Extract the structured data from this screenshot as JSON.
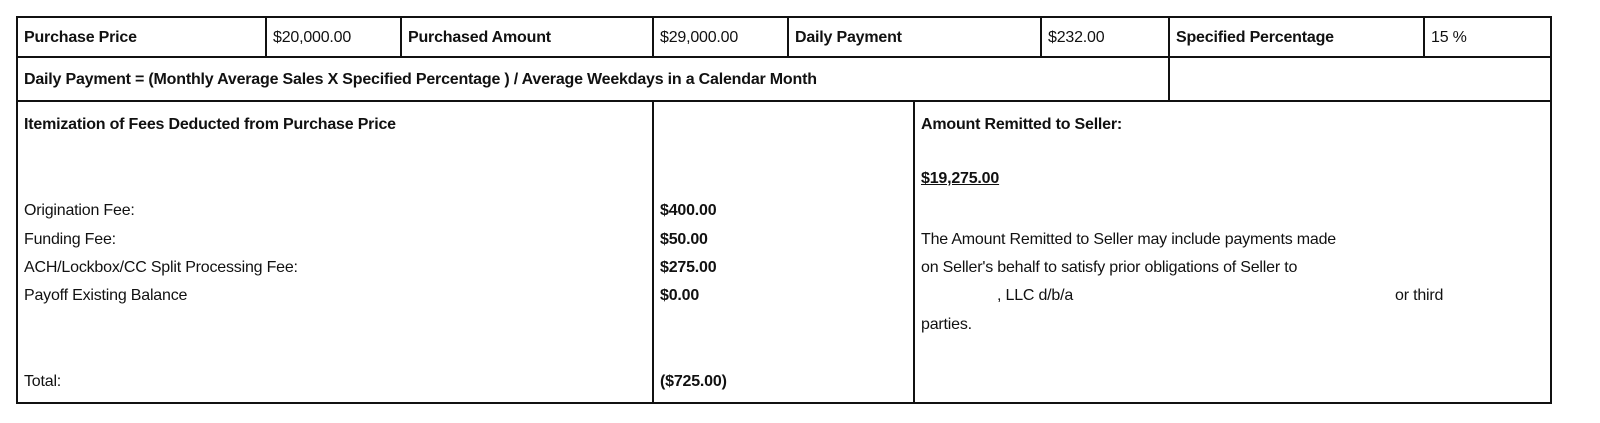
{
  "header_row": [
    {
      "label": "Purchase Price",
      "value": "$20,000.00"
    },
    {
      "label": "Purchased Amount",
      "value": "$29,000.00"
    },
    {
      "label": "Daily Payment",
      "value": "$232.00"
    },
    {
      "label": "Specified Percentage",
      "value": "15 %"
    }
  ],
  "formula": "Daily Payment = (Monthly Average Sales X Specified Percentage ) / Average Weekdays in a Calendar Month",
  "fees": {
    "title": "Itemization of Fees Deducted from Purchase Price",
    "items": [
      {
        "label": "Origination Fee:",
        "amount": "$400.00"
      },
      {
        "label": "Funding Fee:",
        "amount": "$50.00"
      },
      {
        "label": "ACH/Lockbox/CC Split Processing Fee:",
        "amount": "$275.00"
      },
      {
        "label": "Payoff Existing Balance",
        "amount": "$0.00"
      }
    ],
    "total_label": "Total:",
    "total_amount": "($725.00)"
  },
  "remitted": {
    "title": "Amount Remitted to Seller:",
    "amount": "$19,275.00",
    "note_line1": "The Amount Remitted to Seller may include payments made",
    "note_line2": "on Seller's behalf to satisfy prior obligations of Seller to",
    "note_line3a": ", LLC d/b/a",
    "note_line3b": "or third",
    "note_line4": "parties."
  }
}
